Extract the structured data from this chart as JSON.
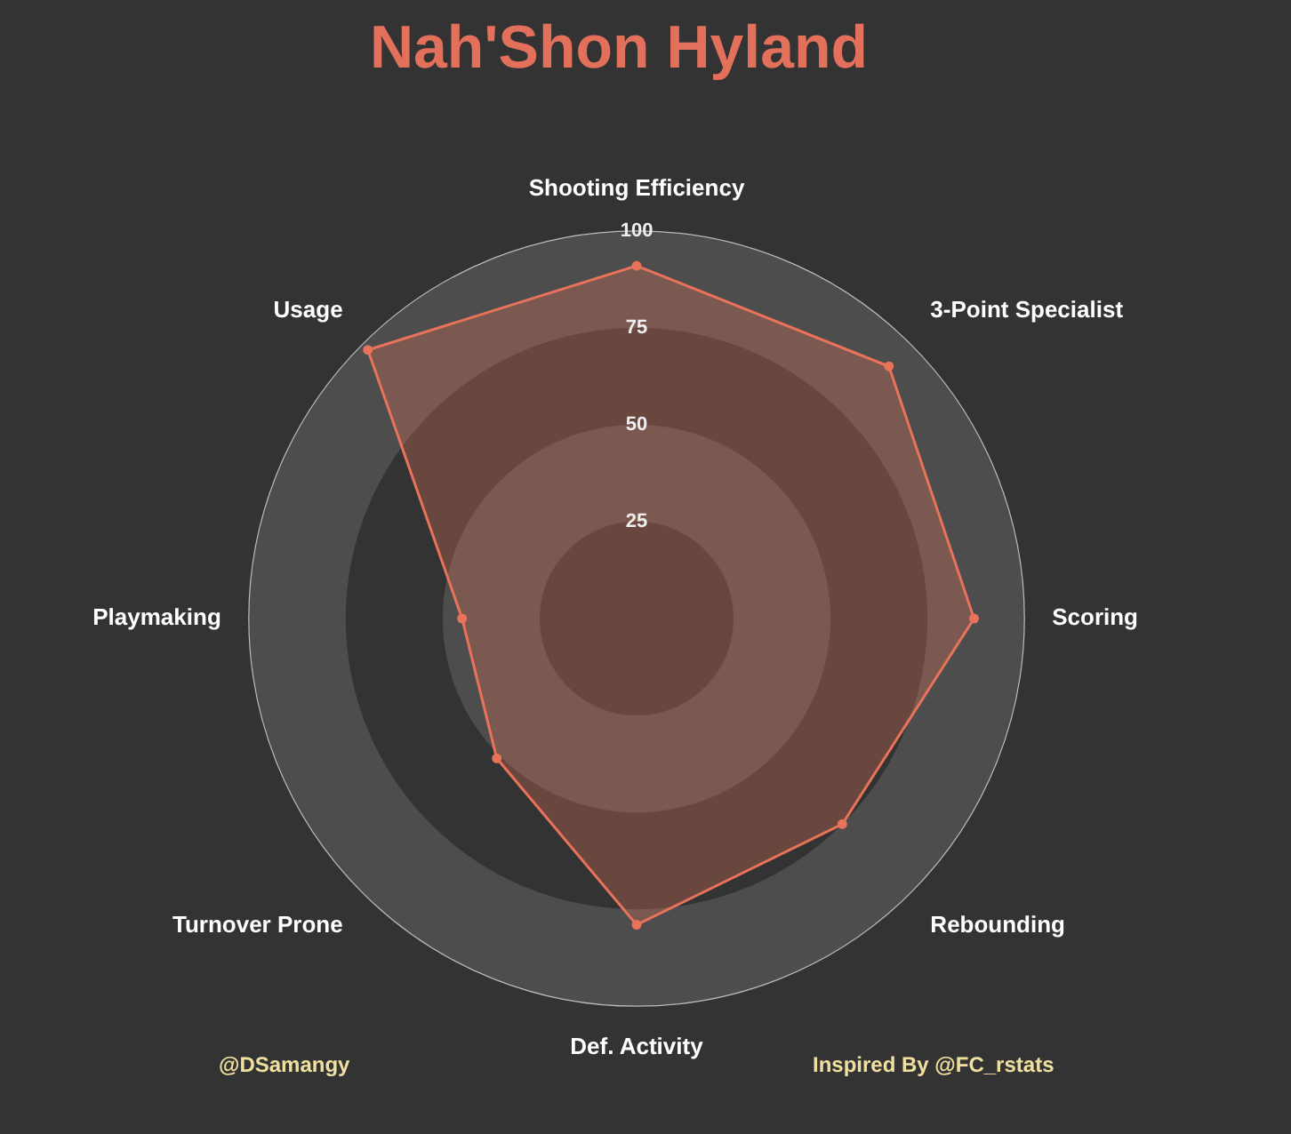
{
  "chart_data": {
    "type": "radar",
    "title": "Nah'Shon Hyland",
    "categories": [
      "Shooting Efficiency",
      "3-Point Specialist",
      "Scoring",
      "Rebounding",
      "Def. Activity",
      "Turnover Prone",
      "Playmaking",
      "Usage"
    ],
    "series": [
      {
        "color": "#e8735a",
        "values": [
          91,
          92,
          87,
          75,
          79,
          51,
          45,
          98
        ]
      }
    ],
    "ylim": [
      0,
      100
    ],
    "yticks": [
      25,
      50,
      75,
      100
    ],
    "grid": true,
    "legend": false,
    "marker": "circle",
    "annotations": [
      "@DSamangy",
      "Inspired By @FC_rstats"
    ]
  }
}
